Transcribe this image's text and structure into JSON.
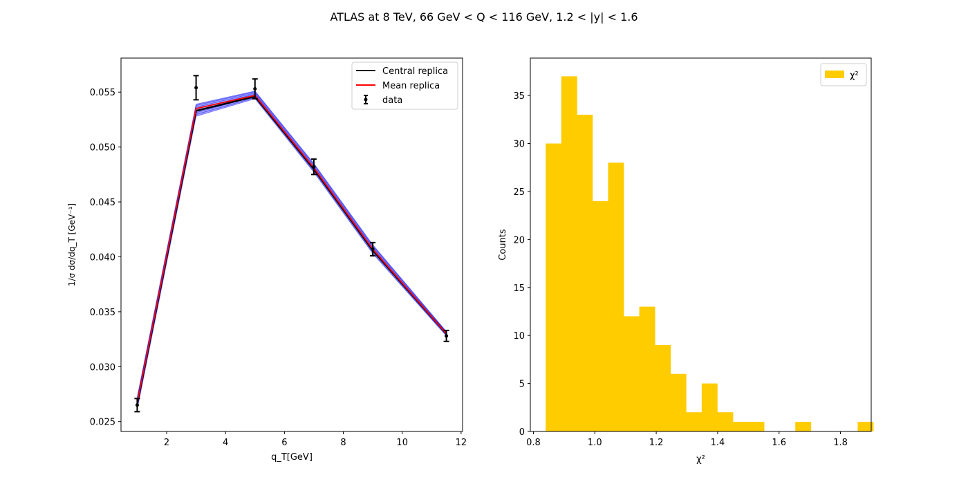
{
  "figure_title": "ATLAS at 8 TeV, 66 GeV < Q < 116 GeV, 1.2 < |y| < 1.6",
  "colors": {
    "central": "#000000",
    "mean": "#ff0000",
    "replicas": "#0000ff",
    "data": "#000000",
    "histogram": "#ffcc00"
  },
  "chart_data": [
    {
      "type": "line",
      "xlabel": "q_T[GeV]",
      "ylabel": "1/σ dσ/dq_T [GeV⁻¹]",
      "xlim": [
        0.45,
        12.05
      ],
      "ylim": [
        0.0241,
        0.0581
      ],
      "xticks": [
        2,
        4,
        6,
        8,
        10,
        12
      ],
      "xtick_labels": [
        "2",
        "4",
        "6",
        "8",
        "10",
        "12"
      ],
      "yticks": [
        0.025,
        0.03,
        0.035,
        0.04,
        0.045,
        0.05,
        0.055
      ],
      "ytick_labels": [
        "0.025",
        "0.030",
        "0.035",
        "0.040",
        "0.045",
        "0.050",
        "0.055"
      ],
      "x": [
        1,
        3,
        5,
        7,
        9,
        11.5
      ],
      "central_replica": [
        0.0266,
        0.0533,
        0.0546,
        0.048,
        0.0406,
        0.033
      ],
      "mean_replica": [
        0.0267,
        0.0535,
        0.0547,
        0.0481,
        0.0407,
        0.033
      ],
      "replica_band_upper": [
        0.0272,
        0.0539,
        0.0551,
        0.0485,
        0.0411,
        0.0332
      ],
      "replica_band_lower": [
        0.0261,
        0.0528,
        0.0544,
        0.0477,
        0.0403,
        0.0328
      ],
      "data": {
        "x": [
          1,
          3,
          5,
          7,
          9,
          11.5
        ],
        "y": [
          0.0265,
          0.0554,
          0.0553,
          0.0482,
          0.0407,
          0.0328
        ],
        "err": [
          0.0006,
          0.0011,
          0.0009,
          0.0007,
          0.0006,
          0.0005
        ]
      },
      "legend": {
        "position": "upper-right",
        "entries": [
          "Central replica",
          "Mean replica",
          "data"
        ]
      }
    },
    {
      "type": "bar",
      "subtype": "histogram",
      "xlabel": "χ²",
      "ylabel": "Counts",
      "xlim": [
        0.79,
        1.9
      ],
      "ylim": [
        0,
        38.9
      ],
      "xticks": [
        0.8,
        1.0,
        1.2,
        1.4,
        1.6,
        1.8
      ],
      "xtick_labels": [
        "0.8",
        "1.0",
        "1.2",
        "1.4",
        "1.6",
        "1.8"
      ],
      "yticks": [
        0,
        5,
        10,
        15,
        20,
        25,
        30,
        35
      ],
      "ytick_labels": [
        "0",
        "5",
        "10",
        "15",
        "20",
        "25",
        "30",
        "35"
      ],
      "bin_start": 0.84,
      "bin_width": 0.0508,
      "counts": [
        30,
        37,
        33,
        24,
        28,
        12,
        13,
        9,
        6,
        2,
        5,
        2,
        1,
        1,
        0,
        0,
        1,
        0,
        0,
        0,
        1
      ],
      "legend": {
        "position": "upper-right",
        "entries": [
          "χ²"
        ]
      }
    }
  ]
}
